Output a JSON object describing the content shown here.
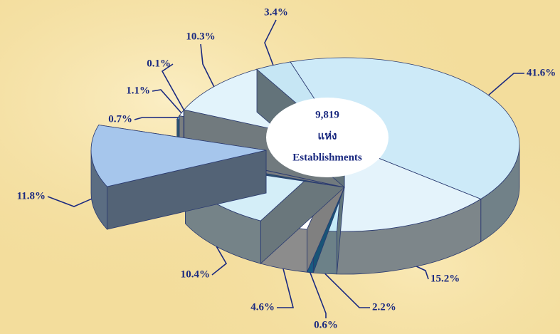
{
  "chart_data": {
    "type": "pie3d",
    "center_text": [
      "9,819",
      "แห่ง",
      "Establishments"
    ],
    "values": [
      41.6,
      15.2,
      2.2,
      0.6,
      4.6,
      10.4,
      11.8,
      0.7,
      1.1,
      0.1,
      10.3,
      3.4
    ],
    "value_labels": [
      "41.6%",
      "15.2%",
      "2.2%",
      "0.6%",
      "4.6%",
      "10.4%",
      "11.8%",
      "0.7%",
      "1.1%",
      "0.1%",
      "10.3%",
      "3.4%"
    ],
    "colors": [
      "#cdeaf8",
      "#e4f3fb",
      "#c4ebf8",
      "#2fa8ec",
      "#ffffff",
      "#d4eef8",
      "#a6c6ec",
      "#4fa6dc",
      "#f4fbff",
      "#d8f0fa",
      "#e2f3fb",
      "#c6e6f4"
    ],
    "exploded": 6
  }
}
